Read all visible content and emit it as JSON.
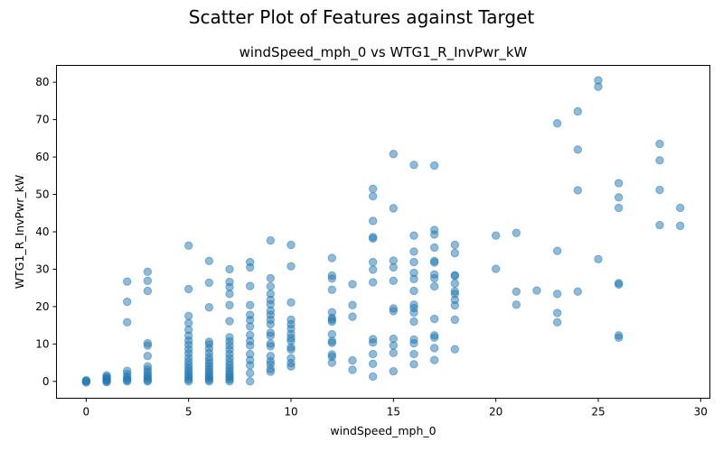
{
  "figure": {
    "suptitle": "Scatter Plot of Features against Target"
  },
  "chart_data": {
    "type": "scatter",
    "title": "windSpeed_mph_0 vs WTG1_R_InvPwr_kW",
    "xlabel": "windSpeed_mph_0",
    "ylabel": "WTG1_R_InvPwr_kW",
    "xlim": [
      -1.45,
      30.45
    ],
    "ylim": [
      -4.5,
      84.5
    ],
    "xticks": [
      0,
      5,
      10,
      15,
      20,
      25,
      30
    ],
    "yticks": [
      0,
      10,
      20,
      30,
      40,
      50,
      60,
      70,
      80
    ],
    "grid": false,
    "marker_color": "#1f77b4",
    "marker_alpha": 0.5,
    "points": [
      [
        0,
        0
      ],
      [
        0,
        -0.3
      ],
      [
        0,
        0.3
      ],
      [
        0,
        0.1
      ],
      [
        1,
        0
      ],
      [
        1,
        0.3
      ],
      [
        1,
        0.6
      ],
      [
        1,
        0.9
      ],
      [
        1,
        1.2
      ],
      [
        1,
        1.6
      ],
      [
        1,
        -0.2
      ],
      [
        2,
        0
      ],
      [
        2,
        0.3
      ],
      [
        2,
        0.7
      ],
      [
        2,
        1.2
      ],
      [
        2,
        2
      ],
      [
        2,
        2.8
      ],
      [
        2,
        15.8
      ],
      [
        2,
        21.3
      ],
      [
        2,
        26.7
      ],
      [
        3,
        0
      ],
      [
        3,
        0.3
      ],
      [
        3,
        0.8
      ],
      [
        3,
        1.3
      ],
      [
        3,
        1.8
      ],
      [
        3,
        2.5
      ],
      [
        3,
        3.2
      ],
      [
        3,
        4
      ],
      [
        3,
        6.8
      ],
      [
        3,
        9.6
      ],
      [
        3,
        10.2
      ],
      [
        3,
        24.2
      ],
      [
        3,
        26.9
      ],
      [
        3,
        29.3
      ],
      [
        5,
        0
      ],
      [
        5,
        0.5
      ],
      [
        5,
        1
      ],
      [
        5,
        1.6
      ],
      [
        5,
        2.2
      ],
      [
        5,
        2.9
      ],
      [
        5,
        3.6
      ],
      [
        5,
        4.4
      ],
      [
        5,
        5.3
      ],
      [
        5,
        6.3
      ],
      [
        5,
        7.5
      ],
      [
        5,
        8.6
      ],
      [
        5,
        9.8
      ],
      [
        5,
        10.9
      ],
      [
        5,
        12.2
      ],
      [
        5,
        13.8
      ],
      [
        5,
        15.6
      ],
      [
        5,
        17.5
      ],
      [
        5,
        24.7
      ],
      [
        5,
        36.3
      ],
      [
        6,
        0
      ],
      [
        6,
        0.4
      ],
      [
        6,
        0.9
      ],
      [
        6,
        1.4
      ],
      [
        6,
        2
      ],
      [
        6,
        2.6
      ],
      [
        6,
        3.3
      ],
      [
        6,
        4
      ],
      [
        6,
        4.8
      ],
      [
        6,
        5.6
      ],
      [
        6,
        6.5
      ],
      [
        6,
        7.6
      ],
      [
        6,
        8.8
      ],
      [
        6,
        9.9
      ],
      [
        6,
        10.6
      ],
      [
        6,
        19.8
      ],
      [
        6,
        26.4
      ],
      [
        6,
        32.2
      ],
      [
        7,
        0
      ],
      [
        7,
        0.5
      ],
      [
        7,
        1
      ],
      [
        7,
        1.5
      ],
      [
        7,
        2.1
      ],
      [
        7,
        2.8
      ],
      [
        7,
        3.5
      ],
      [
        7,
        4.3
      ],
      [
        7,
        5.2
      ],
      [
        7,
        6.2
      ],
      [
        7,
        7.3
      ],
      [
        7,
        8.5
      ],
      [
        7,
        9.6
      ],
      [
        7,
        10.7
      ],
      [
        7,
        11.8
      ],
      [
        7,
        16.1
      ],
      [
        7,
        20.4
      ],
      [
        7,
        23.4
      ],
      [
        7,
        25.2
      ],
      [
        7,
        26.6
      ],
      [
        7,
        30
      ],
      [
        8,
        0
      ],
      [
        8,
        2.2
      ],
      [
        8,
        4.3
      ],
      [
        8,
        5.7
      ],
      [
        8,
        7.3
      ],
      [
        8,
        9.6
      ],
      [
        8,
        10.8
      ],
      [
        8,
        12.4
      ],
      [
        8,
        14.7
      ],
      [
        8,
        16.4
      ],
      [
        8,
        17.8
      ],
      [
        8,
        20.4
      ],
      [
        8,
        25.5
      ],
      [
        8,
        30.5
      ],
      [
        8,
        31.9
      ],
      [
        9,
        2.6
      ],
      [
        9,
        3.3
      ],
      [
        9,
        4.6
      ],
      [
        9,
        5.4
      ],
      [
        9,
        6.8
      ],
      [
        9,
        9.4
      ],
      [
        9,
        10.1
      ],
      [
        9,
        12.2
      ],
      [
        9,
        13
      ],
      [
        9,
        15.3
      ],
      [
        9,
        16.5
      ],
      [
        9,
        17.8
      ],
      [
        9,
        18.9
      ],
      [
        9,
        20.6
      ],
      [
        9,
        21.8
      ],
      [
        9,
        23.4
      ],
      [
        9,
        25.4
      ],
      [
        9,
        27.6
      ],
      [
        9,
        37.7
      ],
      [
        10,
        4
      ],
      [
        10,
        4.9
      ],
      [
        10,
        6.2
      ],
      [
        10,
        8.5
      ],
      [
        10,
        9.1
      ],
      [
        10,
        10.8
      ],
      [
        10,
        11.6
      ],
      [
        10,
        12.7
      ],
      [
        10,
        14.1
      ],
      [
        10,
        15.3
      ],
      [
        10,
        16.5
      ],
      [
        10,
        21.1
      ],
      [
        10,
        30.8
      ],
      [
        10,
        36.5
      ],
      [
        12,
        5
      ],
      [
        12,
        6.6
      ],
      [
        12,
        7.2
      ],
      [
        12,
        10.3
      ],
      [
        12,
        10.8
      ],
      [
        12,
        12.6
      ],
      [
        12,
        16
      ],
      [
        12,
        16.5
      ],
      [
        12,
        17
      ],
      [
        12,
        18.5
      ],
      [
        12,
        24.5
      ],
      [
        12,
        27.5
      ],
      [
        12,
        28.3
      ],
      [
        12,
        33
      ],
      [
        13,
        3.1
      ],
      [
        13,
        5.6
      ],
      [
        13,
        17.3
      ],
      [
        13,
        20.4
      ],
      [
        13,
        26
      ],
      [
        14,
        1.3
      ],
      [
        14,
        4.7
      ],
      [
        14,
        7.3
      ],
      [
        14,
        10.4
      ],
      [
        14,
        11.3
      ],
      [
        14,
        26.5
      ],
      [
        14,
        29.9
      ],
      [
        14,
        31.9
      ],
      [
        14,
        38.2
      ],
      [
        14,
        38.6
      ],
      [
        14,
        42.9
      ],
      [
        14,
        49.5
      ],
      [
        14,
        51.5
      ],
      [
        15,
        2.7
      ],
      [
        15,
        7.6
      ],
      [
        15,
        9.6
      ],
      [
        15,
        11.4
      ],
      [
        15,
        18.8
      ],
      [
        15,
        19.5
      ],
      [
        15,
        26.9
      ],
      [
        15,
        30.5
      ],
      [
        15,
        32.3
      ],
      [
        15,
        46.3
      ],
      [
        15,
        60.8
      ],
      [
        16,
        4.6
      ],
      [
        16,
        7.3
      ],
      [
        16,
        10.2
      ],
      [
        16,
        11.2
      ],
      [
        16,
        16
      ],
      [
        16,
        18.4
      ],
      [
        16,
        19.6
      ],
      [
        16,
        20.5
      ],
      [
        16,
        24.2
      ],
      [
        16,
        27.4
      ],
      [
        16,
        29
      ],
      [
        16,
        31.9
      ],
      [
        16,
        34.7
      ],
      [
        16,
        39
      ],
      [
        16,
        57.9
      ],
      [
        17,
        5.7
      ],
      [
        17,
        8.9
      ],
      [
        17,
        11.7
      ],
      [
        17,
        12.3
      ],
      [
        17,
        16.7
      ],
      [
        17,
        25.4
      ],
      [
        17,
        27.6
      ],
      [
        17,
        28.6
      ],
      [
        17,
        31.8
      ],
      [
        17,
        32.2
      ],
      [
        17,
        35.8
      ],
      [
        17,
        39.3
      ],
      [
        17,
        40.5
      ],
      [
        17,
        57.7
      ],
      [
        18,
        8.6
      ],
      [
        18,
        16.5
      ],
      [
        18,
        20.3
      ],
      [
        18,
        21.8
      ],
      [
        18,
        23.4
      ],
      [
        18,
        24.1
      ],
      [
        18,
        26.2
      ],
      [
        18,
        28.2
      ],
      [
        18,
        28.4
      ],
      [
        18,
        34.3
      ],
      [
        18,
        36.5
      ],
      [
        20,
        30.1
      ],
      [
        20,
        39
      ],
      [
        21,
        20.5
      ],
      [
        21,
        24
      ],
      [
        21,
        39.7
      ],
      [
        22,
        24.3
      ],
      [
        23,
        15.8
      ],
      [
        23,
        18.3
      ],
      [
        23,
        23.4
      ],
      [
        23,
        34.9
      ],
      [
        23,
        69
      ],
      [
        24,
        24
      ],
      [
        24,
        51.1
      ],
      [
        24,
        62
      ],
      [
        24,
        72.2
      ],
      [
        25,
        32.7
      ],
      [
        25,
        78.8
      ],
      [
        25,
        80.5
      ],
      [
        26,
        11.7
      ],
      [
        26,
        12.3
      ],
      [
        26,
        25.9
      ],
      [
        26,
        26.3
      ],
      [
        26,
        46.4
      ],
      [
        26,
        49.2
      ],
      [
        26,
        53
      ],
      [
        28,
        41.8
      ],
      [
        28,
        51.2
      ],
      [
        28,
        59.1
      ],
      [
        28,
        63.5
      ],
      [
        29,
        41.6
      ],
      [
        29,
        46.4
      ]
    ]
  }
}
